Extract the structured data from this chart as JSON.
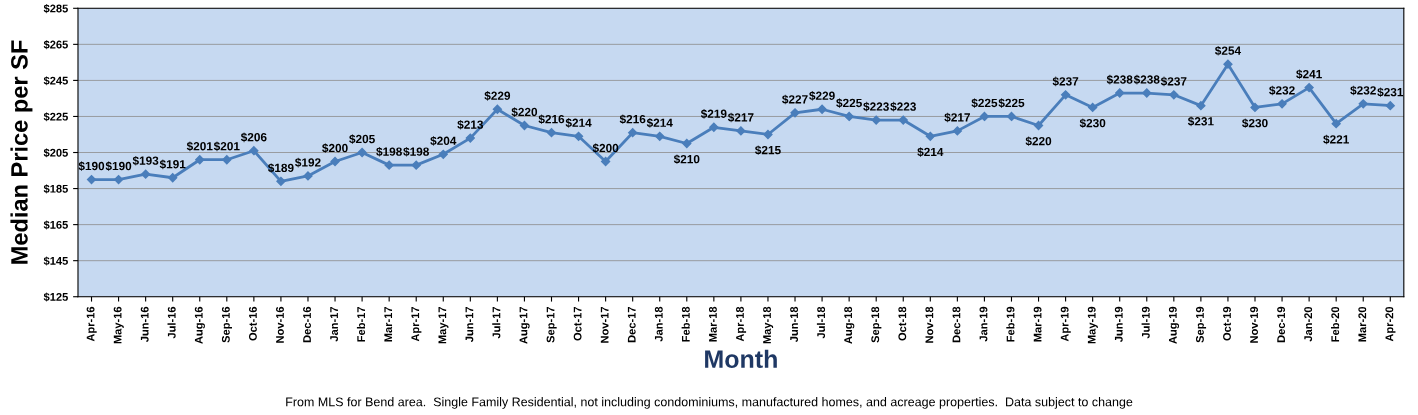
{
  "chart_data": {
    "type": "line",
    "xlabel": "Month",
    "ylabel": "Median Price per SF",
    "categories": [
      "Apr-16",
      "May-16",
      "Jun-16",
      "Jul-16",
      "Aug-16",
      "Sep-16",
      "Oct-16",
      "Nov-16",
      "Dec-16",
      "Jan-17",
      "Feb-17",
      "Mar-17",
      "Apr-17",
      "May-17",
      "Jun-17",
      "Jul-17",
      "Aug-17",
      "Sep-17",
      "Oct-17",
      "Nov-17",
      "Dec-17",
      "Jan-18",
      "Feb-18",
      "Mar-18",
      "Apr-18",
      "May-18",
      "Jun-18",
      "Jul-18",
      "Aug-18",
      "Sep-18",
      "Oct-18",
      "Nov-18",
      "Dec-18",
      "Jan-19",
      "Feb-19",
      "Mar-19",
      "Apr-19",
      "May-19",
      "Jun-19",
      "Jul-19",
      "Aug-19",
      "Sep-19",
      "Oct-19",
      "Nov-19",
      "Dec-19",
      "Jan-20",
      "Feb-20",
      "Mar-20",
      "Apr-20"
    ],
    "series": [
      {
        "color": "#4a7ebb",
        "values": [
          190,
          190,
          193,
          191,
          201,
          201,
          206,
          189,
          192,
          200,
          205,
          198,
          198,
          204,
          213,
          229,
          220,
          216,
          214,
          200,
          216,
          214,
          210,
          219,
          217,
          215,
          227,
          229,
          225,
          223,
          223,
          214,
          217,
          225,
          225,
          220,
          237,
          230,
          238,
          238,
          237,
          231,
          254,
          230,
          232,
          241,
          221,
          232,
          231
        ],
        "value_labels": [
          "$190",
          "$190",
          "$193",
          "$191",
          "$201",
          "$201",
          "$206",
          "$189",
          "$192",
          "$200",
          "$205",
          "$198",
          "$198",
          "$204",
          "$213",
          "$229",
          "$220",
          "$216",
          "$214",
          "$200",
          "$216",
          "$214",
          "$210",
          "$219",
          "$217",
          "$215",
          "$227",
          "$229",
          "$225",
          "$223",
          "$223",
          "$214",
          "$217",
          "$225",
          "$225",
          "$220",
          "$237",
          "$230",
          "$238",
          "$238",
          "$237",
          "$231",
          "$254",
          "$230",
          "$232",
          "$241",
          "$221",
          "$232",
          "$231"
        ]
      }
    ],
    "ylim": [
      125,
      285
    ],
    "yticks": [
      {
        "value": 125,
        "label": "$125"
      },
      {
        "value": 145,
        "label": "$145"
      },
      {
        "value": 165,
        "label": "$165"
      },
      {
        "value": 185,
        "label": "$185"
      },
      {
        "value": 205,
        "label": "$205"
      },
      {
        "value": 225,
        "label": "$225"
      },
      {
        "value": 245,
        "label": "$245"
      },
      {
        "value": 265,
        "label": "$265"
      },
      {
        "value": 285,
        "label": "$285"
      }
    ],
    "grid": "y",
    "marker": "diamond",
    "line_style": "solid",
    "annotations": [
      "From MLS for Bend area.  Single Family Residential, not including condominiums, manufactured homes, and acreage properties.  Data subject to change"
    ]
  }
}
